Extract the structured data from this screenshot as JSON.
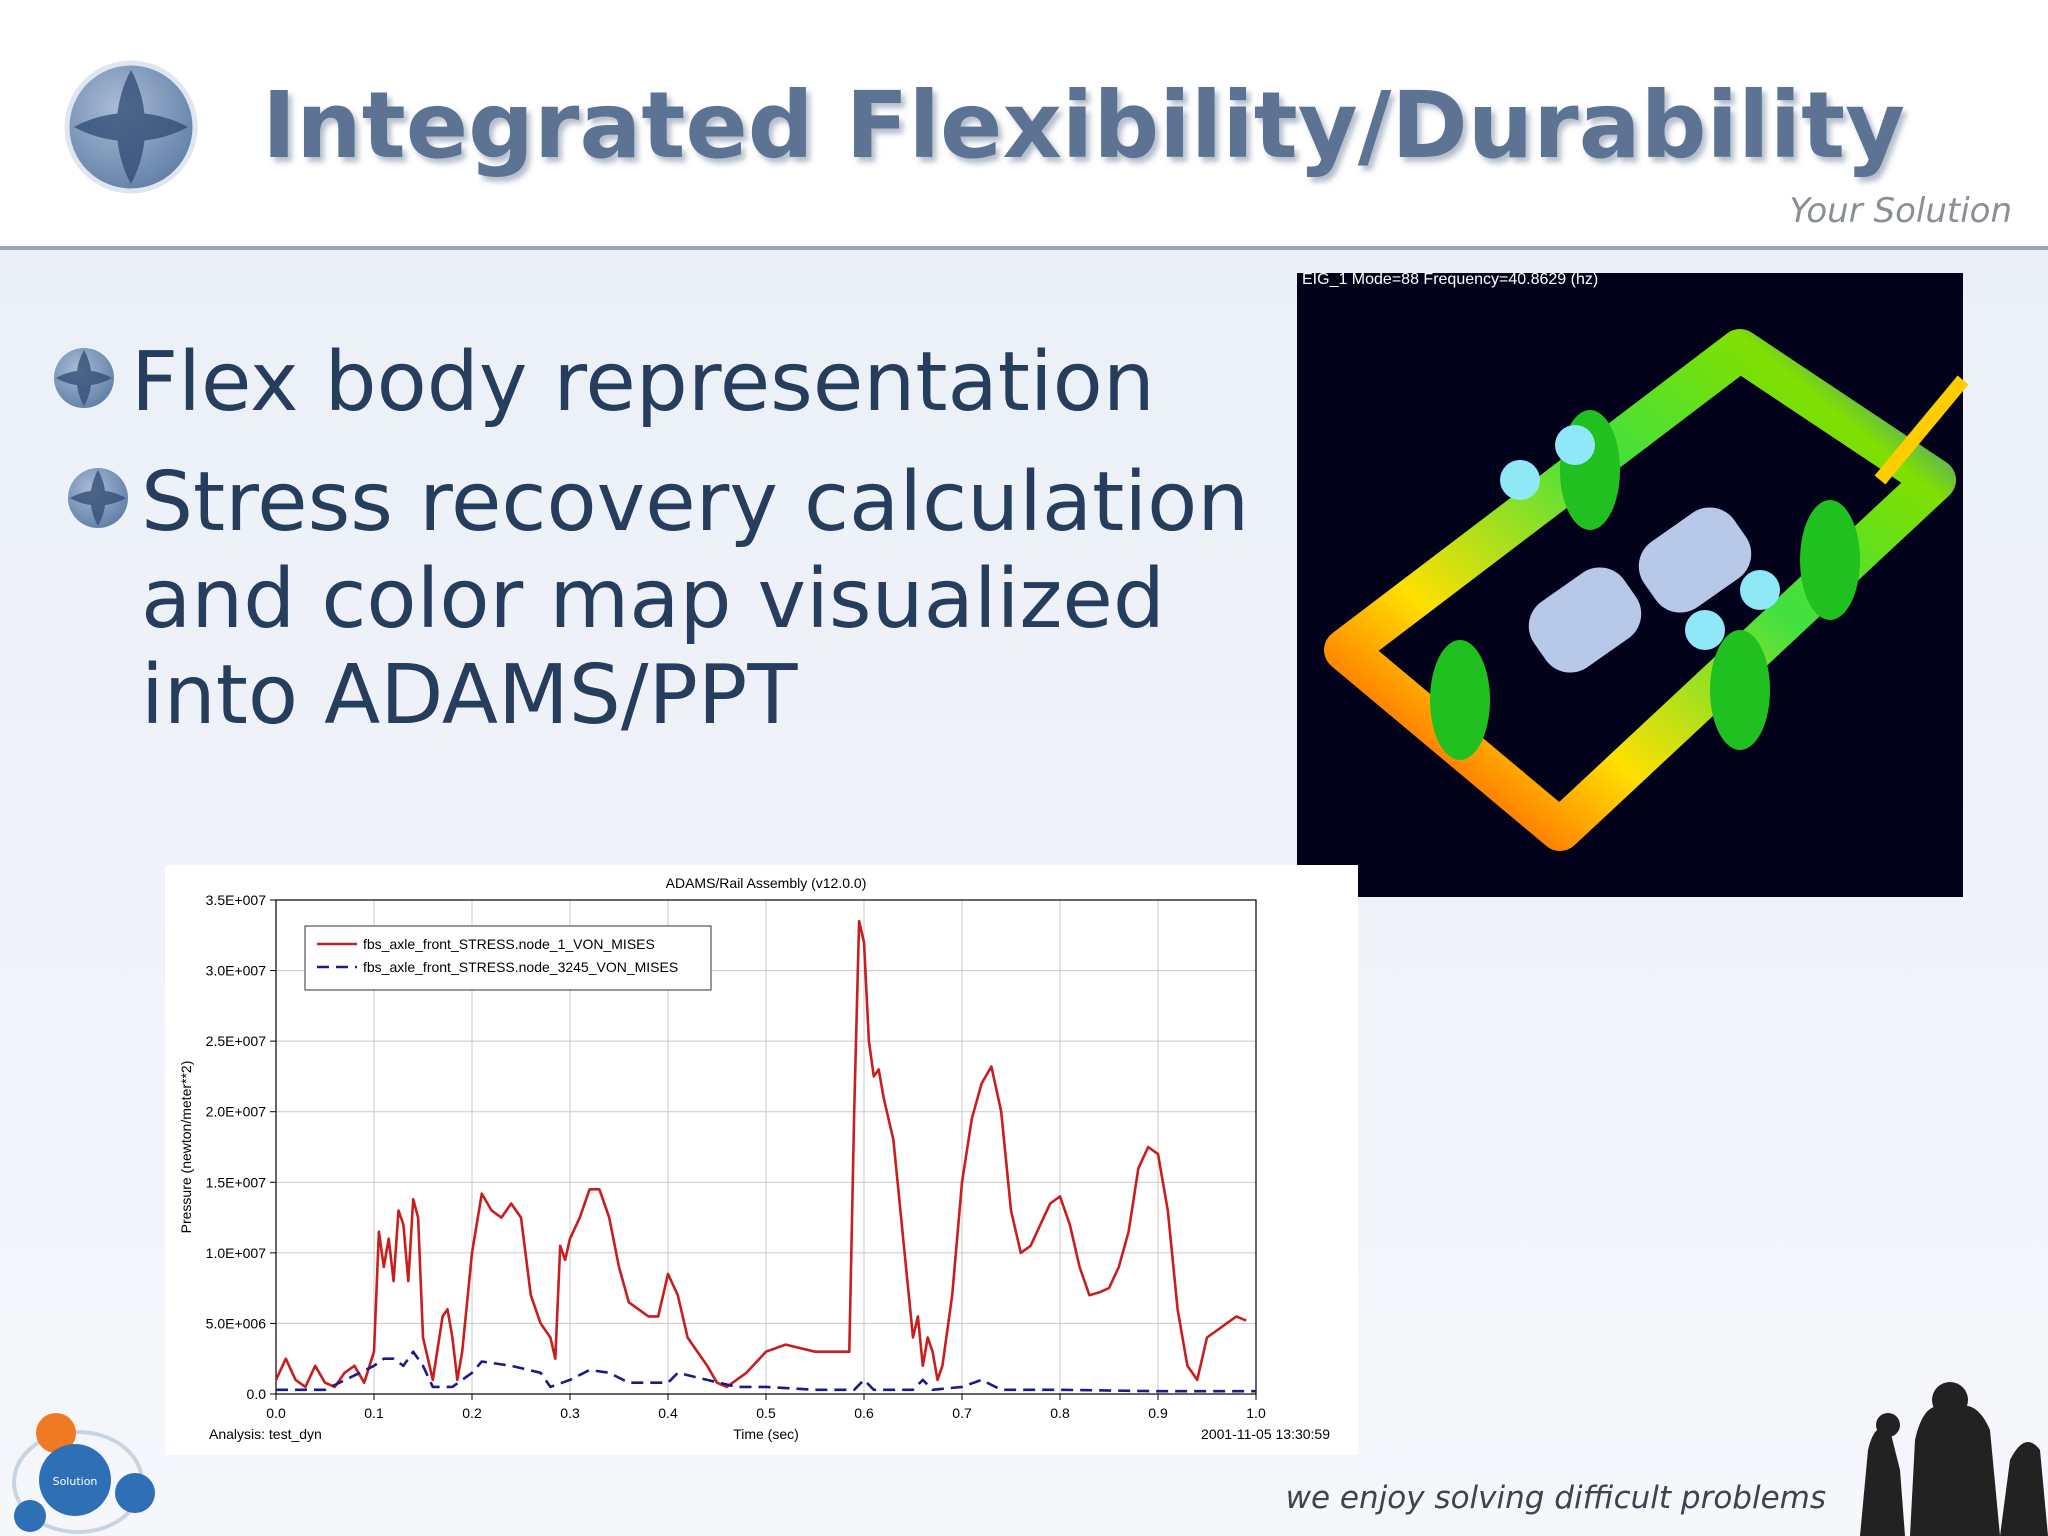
{
  "header": {
    "title": "Integrated Flexibility/Durability",
    "tagline": "Your Solution"
  },
  "bullets": [
    {
      "lines": [
        "Flex body representation"
      ]
    },
    {
      "lines": [
        "Stress recovery calculation",
        "and color map visualized",
        "into ADAMS/PPT"
      ]
    }
  ],
  "image": {
    "caption": "EIG_1  Mode=88  Frequency=40.8629 (hz)"
  },
  "footer": {
    "slogan": "we enjoy solving difficult problems",
    "logo_label": "Solution"
  },
  "chart_data": {
    "type": "line",
    "title": "ADAMS/Rail Assembly (v12.0.0)",
    "x_label": "Time (sec)",
    "y_label": "Pressure (newton/meter**2)",
    "analysis": "Analysis:  test_dyn",
    "timestamp": "2001-11-05 13:30:59",
    "xlim": [
      0,
      1
    ],
    "ylim": [
      0,
      35000000
    ],
    "xticks": [
      {
        "value": 0,
        "label": "0.0"
      },
      0.1,
      0.2,
      0.3,
      0.4,
      0.5,
      0.6,
      0.7,
      0.8,
      0.9,
      {
        "value": 1,
        "label": "1.0"
      }
    ],
    "yticks": [
      {
        "value": 0,
        "label": "0.0"
      },
      {
        "value": 5000000,
        "label": "5.0E+006"
      },
      {
        "value": 10000000,
        "label": "1.0E+007"
      },
      {
        "value": 15000000,
        "label": "1.5E+007"
      },
      {
        "value": 20000000,
        "label": "2.0E+007"
      },
      {
        "value": 25000000,
        "label": "2.5E+007"
      },
      {
        "value": 30000000,
        "label": "3.0E+007"
      },
      {
        "value": 35000000,
        "label": "3.5E+007"
      }
    ],
    "grid": true,
    "legend": "upper left",
    "series": [
      {
        "name": "fbs_axle_front_STRESS.node_1_VON_MISES",
        "color": "#c81e1e",
        "style": "solid",
        "x": [
          0,
          0.01,
          0.02,
          0.03,
          0.04,
          0.05,
          0.06,
          0.07,
          0.08,
          0.09,
          0.1,
          0.105,
          0.11,
          0.115,
          0.12,
          0.125,
          0.13,
          0.135,
          0.14,
          0.145,
          0.15,
          0.16,
          0.17,
          0.175,
          0.18,
          0.185,
          0.19,
          0.2,
          0.21,
          0.22,
          0.23,
          0.24,
          0.25,
          0.26,
          0.27,
          0.28,
          0.285,
          0.29,
          0.295,
          0.3,
          0.31,
          0.32,
          0.33,
          0.34,
          0.35,
          0.36,
          0.38,
          0.39,
          0.4,
          0.41,
          0.42,
          0.43,
          0.44,
          0.45,
          0.46,
          0.48,
          0.5,
          0.52,
          0.55,
          0.57,
          0.585,
          0.59,
          0.595,
          0.6,
          0.605,
          0.61,
          0.615,
          0.62,
          0.63,
          0.64,
          0.65,
          0.655,
          0.66,
          0.665,
          0.67,
          0.675,
          0.68,
          0.69,
          0.7,
          0.71,
          0.72,
          0.73,
          0.74,
          0.75,
          0.76,
          0.77,
          0.78,
          0.79,
          0.8,
          0.81,
          0.82,
          0.83,
          0.84,
          0.85,
          0.86,
          0.87,
          0.88,
          0.89,
          0.9,
          0.91,
          0.92,
          0.93,
          0.94,
          0.95,
          0.96,
          0.97,
          0.98,
          0.99
        ],
        "values": [
          1000000,
          2500000,
          1000000,
          500000,
          2000000,
          800000,
          500000,
          1500000,
          2000000,
          800000,
          3000000,
          11500000,
          9000000,
          11000000,
          8000000,
          13000000,
          12000000,
          8000000,
          13800000,
          12500000,
          4000000,
          1000000,
          5500000,
          6000000,
          4000000,
          1000000,
          3000000,
          10000000,
          14200000,
          13000000,
          12500000,
          13500000,
          12500000,
          7000000,
          5000000,
          4000000,
          2500000,
          10500000,
          9500000,
          11000000,
          12500000,
          14500000,
          14500000,
          12500000,
          9000000,
          6500000,
          5500000,
          5500000,
          8500000,
          7000000,
          4000000,
          3000000,
          2000000,
          800000,
          500000,
          1500000,
          3000000,
          3500000,
          3000000,
          3000000,
          3000000,
          20000000,
          33500000,
          32000000,
          25000000,
          22500000,
          23000000,
          21000000,
          18000000,
          11000000,
          4000000,
          5500000,
          2000000,
          4000000,
          3000000,
          1000000,
          2000000,
          7000000,
          15000000,
          19500000,
          22000000,
          23200000,
          20000000,
          13000000,
          10000000,
          10500000,
          12000000,
          13500000,
          14000000,
          12000000,
          9000000,
          7000000,
          7200000,
          7500000,
          9000000,
          11500000,
          16000000,
          17500000,
          17000000,
          13000000,
          6000000,
          2000000,
          1000000,
          4000000,
          4500000,
          5000000,
          5500000,
          5200000
        ]
      },
      {
        "name": "fbs_axle_front_STRESS.node_3245_VON_MISES",
        "color": "#1a1a8c",
        "style": "dashed",
        "x": [
          0,
          0.05,
          0.1,
          0.11,
          0.12,
          0.13,
          0.14,
          0.15,
          0.16,
          0.18,
          0.2,
          0.21,
          0.24,
          0.27,
          0.28,
          0.3,
          0.32,
          0.34,
          0.36,
          0.4,
          0.41,
          0.44,
          0.47,
          0.5,
          0.55,
          0.59,
          0.6,
          0.61,
          0.65,
          0.66,
          0.67,
          0.7,
          0.72,
          0.74,
          0.8,
          0.9,
          1
        ],
        "values": [
          300000,
          300000,
          2000000,
          2500000,
          2500000,
          2000000,
          3000000,
          2000000,
          500000,
          500000,
          1500000,
          2300000,
          2000000,
          1500000,
          500000,
          1000000,
          1700000,
          1500000,
          800000,
          800000,
          1500000,
          1000000,
          500000,
          500000,
          300000,
          300000,
          1000000,
          300000,
          300000,
          1000000,
          300000,
          500000,
          1000000,
          300000,
          300000,
          200000,
          200000
        ]
      }
    ]
  }
}
